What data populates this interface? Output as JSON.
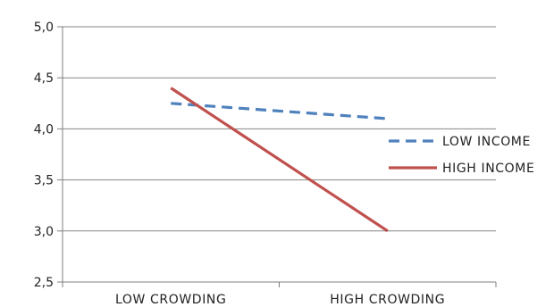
{
  "chart_data": {
    "type": "line",
    "title": "",
    "xlabel": "",
    "ylabel": "",
    "categories": [
      "LOW CROWDING",
      "HIGH CROWDING"
    ],
    "ylim": [
      2.5,
      5.0
    ],
    "yticks": [
      "2,5",
      "3,0",
      "3,5",
      "4,0",
      "4,5",
      "5,0"
    ],
    "ytick_values": [
      2.5,
      3.0,
      3.5,
      4.0,
      4.5,
      5.0
    ],
    "grid": true,
    "legend_position": "right",
    "series": [
      {
        "name": "LOW INCOME",
        "values": [
          4.25,
          4.1
        ],
        "color": "#4f81bd",
        "dash": "dashed"
      },
      {
        "name": "HIGH INCOME",
        "values": [
          4.4,
          3.0
        ],
        "color": "#c0504d",
        "dash": "solid"
      }
    ]
  }
}
